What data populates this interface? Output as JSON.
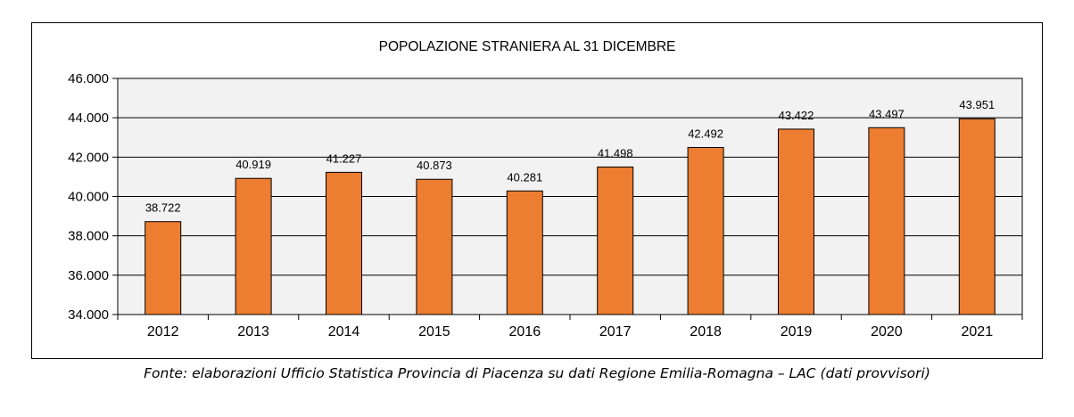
{
  "chart_data": {
    "type": "bar",
    "title": "POPOLAZIONE STRANIERA AL 31 DICEMBRE",
    "categories": [
      "2012",
      "2013",
      "2014",
      "2015",
      "2016",
      "2017",
      "2018",
      "2019",
      "2020",
      "2021"
    ],
    "values": [
      38722,
      40919,
      41227,
      40873,
      40281,
      41498,
      42492,
      43422,
      43497,
      43951
    ],
    "value_labels": [
      "38.722",
      "40.919",
      "41.227",
      "40.873",
      "40.281",
      "41.498",
      "42.492",
      "43.422",
      "43.497",
      "43.951"
    ],
    "ylim": [
      34000,
      46000
    ],
    "yticks": [
      34000,
      36000,
      38000,
      40000,
      42000,
      44000,
      46000
    ],
    "ytick_labels": [
      "34.000",
      "36.000",
      "38.000",
      "40.000",
      "42.000",
      "44.000",
      "46.000"
    ],
    "xlabel": "",
    "ylabel": "",
    "grid": true,
    "legend": "none",
    "colors": {
      "bar": "#ED7D31",
      "bar_edge": "#000000",
      "plot_background": "#F2F2F2",
      "grid": "#000000"
    }
  },
  "source_note": "Fonte: elaborazioni Ufficio Statistica Provincia di Piacenza su dati Regione Emilia-Romagna – LAC (dati provvisori)"
}
